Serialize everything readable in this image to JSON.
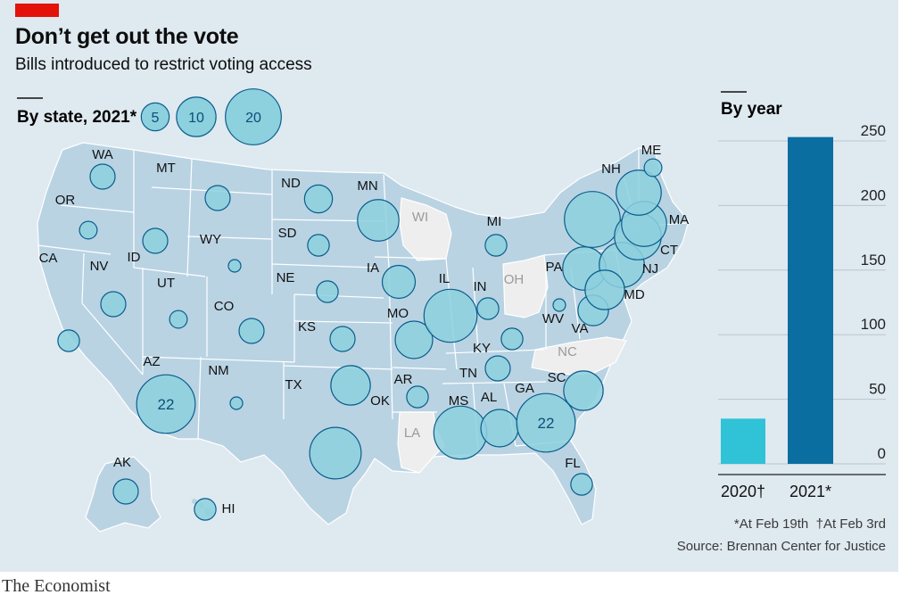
{
  "header": {
    "title": "Don’t get out the vote",
    "subtitle": "Bills introduced to restrict voting access"
  },
  "brand": "The Economist",
  "map": {
    "panel_title": "By state, 2021*",
    "size_legend": [
      5,
      10,
      20
    ]
  },
  "chart_data": [
    {
      "type": "bubble-map",
      "title": "By state, 2021*",
      "legend_sizes": [
        5,
        10,
        20
      ],
      "states": [
        {
          "state": "WA",
          "bills": 4
        },
        {
          "state": "OR",
          "bills": 2
        },
        {
          "state": "CA",
          "bills": 3
        },
        {
          "state": "NV",
          "bills": 4
        },
        {
          "state": "ID",
          "bills": 4
        },
        {
          "state": "MT",
          "bills": 4
        },
        {
          "state": "WY",
          "bills": 1
        },
        {
          "state": "UT",
          "bills": 2
        },
        {
          "state": "CO",
          "bills": 4
        },
        {
          "state": "AZ",
          "bills": 22,
          "label": "22"
        },
        {
          "state": "NM",
          "bills": 1
        },
        {
          "state": "ND",
          "bills": 5
        },
        {
          "state": "SD",
          "bills": 3
        },
        {
          "state": "NE",
          "bills": 3
        },
        {
          "state": "KS",
          "bills": 4
        },
        {
          "state": "OK",
          "bills": 10
        },
        {
          "state": "TX",
          "bills": 17
        },
        {
          "state": "MN",
          "bills": 11
        },
        {
          "state": "IA",
          "bills": 7
        },
        {
          "state": "MO",
          "bills": 9
        },
        {
          "state": "AR",
          "bills": 3
        },
        {
          "state": "LA",
          "bills": 0
        },
        {
          "state": "WI",
          "bills": 0
        },
        {
          "state": "IL",
          "bills": 18
        },
        {
          "state": "MI",
          "bills": 3
        },
        {
          "state": "IN",
          "bills": 3
        },
        {
          "state": "OH",
          "bills": 0
        },
        {
          "state": "KY",
          "bills": 3
        },
        {
          "state": "TN",
          "bills": 4
        },
        {
          "state": "MS",
          "bills": 18
        },
        {
          "state": "AL",
          "bills": 9
        },
        {
          "state": "GA",
          "bills": 22,
          "label": "22"
        },
        {
          "state": "FL",
          "bills": 3
        },
        {
          "state": "SC",
          "bills": 10
        },
        {
          "state": "NC",
          "bills": 0
        },
        {
          "state": "VA",
          "bills": 6
        },
        {
          "state": "WV",
          "bills": 1
        },
        {
          "state": "PA",
          "bills": 12
        },
        {
          "state": "NY",
          "bills": 20
        },
        {
          "state": "NJ",
          "bills": 13
        },
        {
          "state": "MD",
          "bills": 10
        },
        {
          "state": "CT",
          "bills": 14
        },
        {
          "state": "MA",
          "bills": 13
        },
        {
          "state": "NH",
          "bills": 13
        },
        {
          "state": "ME",
          "bills": 2
        },
        {
          "state": "AK",
          "bills": 4
        },
        {
          "state": "HI",
          "bills": 3
        }
      ],
      "colors": {
        "bubble": "#8dd0de",
        "bubble_edge": "#0a5d8c",
        "land": "#b9d3e3",
        "no_bills_land": "#eeeeee"
      }
    },
    {
      "type": "bar",
      "title": "By year",
      "categories": [
        "2020†",
        "2021*"
      ],
      "values": [
        35,
        253
      ],
      "ylim": [
        0,
        250
      ],
      "yticks": [
        0,
        50,
        100,
        150,
        200,
        250
      ],
      "colors": [
        "#30c2d6",
        "#0b6ea0"
      ]
    }
  ],
  "bar": {
    "title": "By year",
    "y_ticks": [
      "250",
      "200",
      "150",
      "100",
      "50",
      "0"
    ],
    "categories": [
      "2020†",
      "2021*"
    ]
  },
  "notes": {
    "footnote": "*At Feb 19th  †At Feb 3rd",
    "source": "Source: Brennan Center for Justice"
  }
}
